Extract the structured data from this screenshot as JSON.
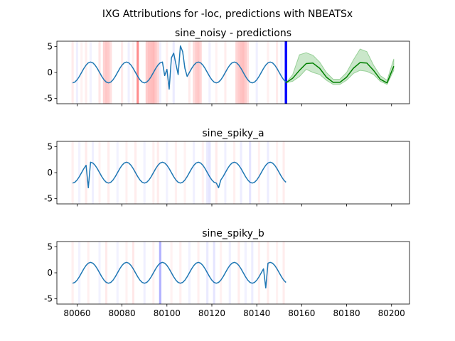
{
  "figure": {
    "suptitle": "IXG Attributions for -loc, predictions with NBEATSx"
  },
  "colors": {
    "series_line": "#1f77b4",
    "prediction_line": "#008000",
    "prediction_band": "#2ca02c",
    "forecast_start_marker": "#0000ff",
    "positive_attribution": "#ff0000",
    "negative_attribution": "#0000ff",
    "spine": "#000000"
  },
  "chart_data": [
    {
      "type": "line",
      "title": "sine_noisy - predictions",
      "xlim": [
        80051,
        80208
      ],
      "ylim": [
        -6,
        6
      ],
      "xticks": [
        80060,
        80080,
        80100,
        80120,
        80140,
        80160,
        80180,
        80200
      ],
      "yticks": [
        -5,
        0,
        5
      ],
      "show_xtick_labels": false,
      "series": [
        {
          "kind": "history",
          "x_start": 80058,
          "x_end": 80153,
          "period": 16,
          "amplitude": 2,
          "phase_x": 80062,
          "overrides": [
            [
              80099,
              -0.6
            ],
            [
              80100,
              0.6
            ],
            [
              80101,
              -3.2
            ],
            [
              80102,
              2.8
            ],
            [
              80103,
              3.7
            ],
            [
              80104,
              1.6
            ],
            [
              80105,
              -0.4
            ],
            [
              80106,
              5.1
            ],
            [
              80107,
              4.0
            ],
            [
              80108,
              0.8
            ]
          ]
        },
        {
          "kind": "forecast",
          "x": [
            80153,
            80156,
            80159,
            80162,
            80165,
            80168,
            80171,
            80174,
            80177,
            80180,
            80183,
            80186,
            80189,
            80192,
            80195,
            80198,
            80201
          ],
          "y": [
            -2.0,
            -1.1,
            0.4,
            1.7,
            1.8,
            0.8,
            -0.9,
            -1.9,
            -1.9,
            -0.9,
            0.8,
            1.9,
            1.8,
            0.4,
            -1.3,
            -2.0,
            1.2
          ],
          "lower": [
            -2.0,
            -1.7,
            -0.8,
            0.6,
            0.0,
            -0.4,
            -1.5,
            -2.3,
            -2.3,
            -1.5,
            -0.2,
            0.4,
            0.2,
            -0.4,
            -1.7,
            -2.3,
            0.4
          ],
          "upper": [
            -2.0,
            -0.4,
            3.4,
            3.8,
            3.3,
            2.0,
            0.0,
            -1.3,
            -1.3,
            0.0,
            2.4,
            4.5,
            4.0,
            1.4,
            -0.6,
            -1.5,
            2.6
          ]
        }
      ],
      "forecast_start_x": 80153,
      "attributions": [
        [
          80058,
          0.08
        ],
        [
          80060,
          -0.06
        ],
        [
          80062,
          0.05
        ],
        [
          80064,
          0.07
        ],
        [
          80066,
          -0.05
        ],
        [
          80070,
          0.1
        ],
        [
          80072,
          0.18
        ],
        [
          80073,
          0.22
        ],
        [
          80074,
          0.2
        ],
        [
          80075,
          0.12
        ],
        [
          80080,
          0.08
        ],
        [
          80083,
          -0.06
        ],
        [
          80085,
          0.06
        ],
        [
          80087,
          0.45
        ],
        [
          80091,
          0.2
        ],
        [
          80092,
          0.24
        ],
        [
          80093,
          0.26
        ],
        [
          80094,
          0.28
        ],
        [
          80095,
          0.22
        ],
        [
          80096,
          0.15
        ],
        [
          80097,
          -0.06
        ],
        [
          80100,
          0.06
        ],
        [
          80103,
          -0.08
        ],
        [
          80110,
          0.08
        ],
        [
          80112,
          0.14
        ],
        [
          80113,
          0.2
        ],
        [
          80114,
          0.22
        ],
        [
          80115,
          0.16
        ],
        [
          80119,
          -0.06
        ],
        [
          80122,
          0.05
        ],
        [
          80126,
          0.07
        ],
        [
          80131,
          0.16
        ],
        [
          80132,
          0.2
        ],
        [
          80133,
          0.24
        ],
        [
          80134,
          0.26
        ],
        [
          80135,
          0.2
        ],
        [
          80136,
          0.12
        ],
        [
          80140,
          -0.06
        ],
        [
          80145,
          0.06
        ],
        [
          80149,
          0.08
        ],
        [
          80151,
          -0.05
        ]
      ]
    },
    {
      "type": "line",
      "title": "sine_spiky_a",
      "xlim": [
        80051,
        80208
      ],
      "ylim": [
        -6,
        6
      ],
      "xticks": [
        80060,
        80080,
        80100,
        80120,
        80140,
        80160,
        80180,
        80200
      ],
      "yticks": [
        -5,
        0,
        5
      ],
      "show_xtick_labels": false,
      "series": [
        {
          "kind": "history",
          "x_start": 80058,
          "x_end": 80153,
          "period": 16,
          "amplitude": 2,
          "phase_x": 80062,
          "overrides": [
            [
              80065,
              -2.9
            ],
            [
              80123,
              -2.9
            ]
          ]
        }
      ],
      "attributions": [
        [
          80058,
          0.06
        ],
        [
          80061,
          -0.05
        ],
        [
          80064,
          0.08
        ],
        [
          80067,
          -0.06
        ],
        [
          80070,
          0.05
        ],
        [
          80074,
          0.07
        ],
        [
          80078,
          -0.05
        ],
        [
          80082,
          0.06
        ],
        [
          80086,
          0.07
        ],
        [
          80090,
          -0.05
        ],
        [
          80094,
          0.06
        ],
        [
          80096,
          0.08
        ],
        [
          80100,
          -0.05
        ],
        [
          80104,
          0.06
        ],
        [
          80108,
          0.05
        ],
        [
          80112,
          -0.06
        ],
        [
          80116,
          0.05
        ],
        [
          80118,
          -0.08
        ],
        [
          80119,
          -0.1
        ],
        [
          80122,
          0.08
        ],
        [
          80126,
          -0.06
        ],
        [
          80130,
          0.06
        ],
        [
          80133,
          -0.07
        ],
        [
          80137,
          -0.1
        ],
        [
          80141,
          0.06
        ],
        [
          80145,
          -0.07
        ],
        [
          80149,
          0.05
        ],
        [
          80152,
          0.07
        ]
      ]
    },
    {
      "type": "line",
      "title": "sine_spiky_b",
      "xlim": [
        80051,
        80208
      ],
      "ylim": [
        -6,
        6
      ],
      "xticks": [
        80060,
        80080,
        80100,
        80120,
        80140,
        80160,
        80180,
        80200
      ],
      "yticks": [
        -5,
        0,
        5
      ],
      "xtick_labels": [
        "80060",
        "80080",
        "80100",
        "80120",
        "80140",
        "80160",
        "80180",
        "80200"
      ],
      "show_xtick_labels": true,
      "series": [
        {
          "kind": "history",
          "x_start": 80058,
          "x_end": 80153,
          "period": 16,
          "amplitude": 2,
          "phase_x": 80062,
          "overrides": [
            [
              80144,
              -2.9
            ]
          ]
        }
      ],
      "attributions": [
        [
          80058,
          0.06
        ],
        [
          80061,
          -0.05
        ],
        [
          80065,
          0.06
        ],
        [
          80070,
          -0.05
        ],
        [
          80073,
          0.08
        ],
        [
          80078,
          -0.05
        ],
        [
          80082,
          0.05
        ],
        [
          80085,
          0.09
        ],
        [
          80090,
          -0.06
        ],
        [
          80094,
          0.05
        ],
        [
          80097,
          -0.3
        ],
        [
          80102,
          0.05
        ],
        [
          80106,
          0.06
        ],
        [
          80110,
          -0.05
        ],
        [
          80114,
          0.06
        ],
        [
          80118,
          -0.08
        ],
        [
          80121,
          -0.1
        ],
        [
          80124,
          0.05
        ],
        [
          80128,
          -0.06
        ],
        [
          80132,
          0.07
        ],
        [
          80135,
          -0.05
        ],
        [
          80138,
          -0.07
        ],
        [
          80141,
          0.06
        ],
        [
          80145,
          0.07
        ],
        [
          80149,
          0.05
        ],
        [
          80152,
          0.07
        ]
      ]
    }
  ]
}
